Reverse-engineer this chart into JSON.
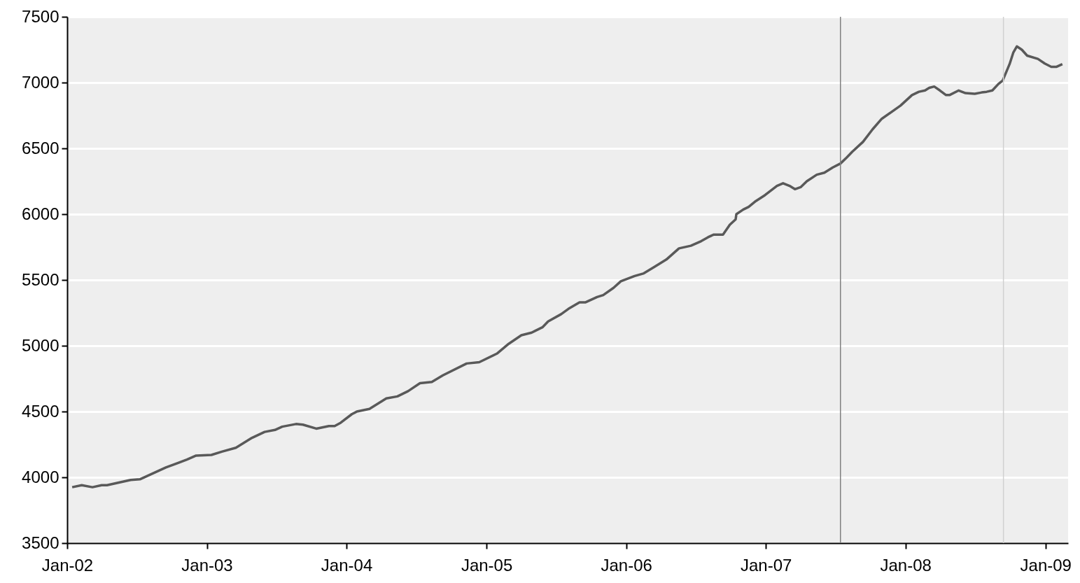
{
  "chart_data": {
    "type": "line",
    "x": [
      "2002-01-14",
      "2002-02-08",
      "2002-03-08",
      "2002-04-01",
      "2002-04-15",
      "2002-06-16",
      "2002-07-10",
      "2002-09-16",
      "2002-11-10",
      "2002-12-04",
      "2003-01-13",
      "2003-02-09",
      "2003-03-18",
      "2003-04-29",
      "2003-06-01",
      "2003-06-28",
      "2003-07-17",
      "2003-08-22",
      "2003-09-09",
      "2003-10-14",
      "2003-11-16",
      "2003-12-01",
      "2003-12-17",
      "2004-01-15",
      "2004-01-28",
      "2004-03-01",
      "2004-04-14",
      "2004-05-13",
      "2004-06-10",
      "2004-07-11",
      "2004-08-11",
      "2004-09-09",
      "2004-11-10",
      "2004-12-13",
      "2005-01-28",
      "2005-02-28",
      "2005-04-02",
      "2005-04-29",
      "2005-05-27",
      "2005-06-11",
      "2005-07-15",
      "2005-08-03",
      "2005-09-01",
      "2005-09-17",
      "2005-10-17",
      "2005-11-02",
      "2005-11-29",
      "2005-12-18",
      "2006-01-23",
      "2006-02-16",
      "2006-03-16",
      "2006-04-16",
      "2006-05-19",
      "2006-06-19",
      "2006-07-16",
      "2006-08-03",
      "2006-08-18",
      "2006-09-11",
      "2006-09-29",
      "2006-10-14",
      "2006-10-16",
      "2006-11-03",
      "2006-11-17",
      "2006-12-06",
      "2006-12-30",
      "2007-01-30",
      "2007-02-15",
      "2007-03-04",
      "2007-03-18",
      "2007-04-02",
      "2007-04-18",
      "2007-05-14",
      "2007-06-03",
      "2007-06-25",
      "2007-07-15",
      "2007-07-31",
      "2007-08-15",
      "2007-09-12",
      "2007-10-07",
      "2007-10-31",
      "2007-12-19",
      "2008-01-18",
      "2008-02-05",
      "2008-02-21",
      "2008-03-03",
      "2008-03-16",
      "2008-03-31",
      "2008-04-16",
      "2008-04-25",
      "2008-05-19",
      "2008-06-06",
      "2008-06-30",
      "2008-07-18",
      "2008-07-31",
      "2008-08-15",
      "2008-08-31",
      "2008-09-11",
      "2008-09-29",
      "2008-10-09",
      "2008-10-18",
      "2008-10-31",
      "2008-11-14",
      "2008-12-12",
      "2008-12-30",
      "2009-01-16",
      "2009-01-30",
      "2009-02-14"
    ],
    "series": [
      {
        "color": "#595959",
        "values": [
          3925,
          3940,
          3925,
          3940,
          3940,
          3980,
          3985,
          4075,
          4135,
          4165,
          4170,
          4195,
          4225,
          4300,
          4345,
          4360,
          4385,
          4405,
          4400,
          4370,
          4390,
          4390,
          4415,
          4480,
          4500,
          4520,
          4600,
          4615,
          4655,
          4715,
          4725,
          4775,
          4865,
          4875,
          4940,
          5015,
          5080,
          5100,
          5140,
          5185,
          5240,
          5280,
          5330,
          5330,
          5370,
          5385,
          5440,
          5490,
          5530,
          5550,
          5600,
          5655,
          5740,
          5760,
          5795,
          5825,
          5845,
          5845,
          5920,
          5960,
          6000,
          6035,
          6055,
          6100,
          6145,
          6215,
          6235,
          6215,
          6190,
          6205,
          6250,
          6300,
          6315,
          6355,
          6385,
          6430,
          6475,
          6550,
          6645,
          6725,
          6825,
          6905,
          6930,
          6940,
          6960,
          6970,
          6940,
          6905,
          6905,
          6940,
          6920,
          6915,
          6925,
          6930,
          6940,
          6990,
          7015,
          7140,
          7230,
          7275,
          7250,
          7205,
          7180,
          7145,
          7120,
          7120,
          7140
        ]
      }
    ],
    "xlim": [
      "2002-01-01",
      "2009-03-01"
    ],
    "xticks": [
      {
        "value": "2002-01-01",
        "label": "Jan-02"
      },
      {
        "value": "2003-01-01",
        "label": "Jan-03"
      },
      {
        "value": "2004-01-01",
        "label": "Jan-04"
      },
      {
        "value": "2005-01-01",
        "label": "Jan-05"
      },
      {
        "value": "2006-01-01",
        "label": "Jan-06"
      },
      {
        "value": "2007-01-01",
        "label": "Jan-07"
      },
      {
        "value": "2008-01-01",
        "label": "Jan-08"
      },
      {
        "value": "2009-01-01",
        "label": "Jan-09"
      }
    ],
    "ylim": [
      3500,
      7500
    ],
    "yticks": [
      3500,
      4000,
      4500,
      5000,
      5500,
      6000,
      6500,
      7000,
      7500
    ],
    "grid": "y",
    "marker": "none",
    "line_style": "solid",
    "ref_lines": [
      {
        "axis": "x",
        "value": "2007-07-15",
        "label": null,
        "color": "#808080"
      },
      {
        "axis": "x",
        "value": "2008-09-13",
        "label": null,
        "color": "#d0d0d0"
      }
    ]
  }
}
